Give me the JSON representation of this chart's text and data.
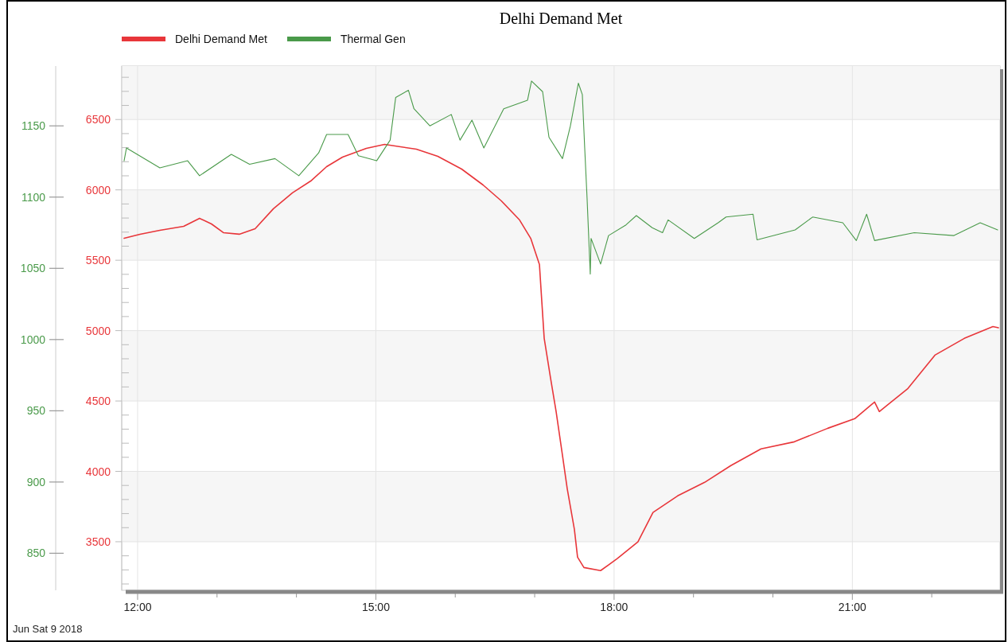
{
  "chart_data": {
    "type": "line",
    "title": "Delhi Demand Met",
    "legend": "top left",
    "grid": true,
    "annotations": [
      "Jun Sat 9 2018"
    ],
    "xlim": [
      11.8,
      22.86
    ],
    "xticks": [
      {
        "value": 12,
        "label": "12:00"
      },
      {
        "value": 13,
        "label": null
      },
      {
        "value": 14,
        "label": null
      },
      {
        "value": 15,
        "label": "15:00"
      },
      {
        "value": 16,
        "label": null
      },
      {
        "value": 17,
        "label": null
      },
      {
        "value": 18,
        "label": "18:00"
      },
      {
        "value": 19,
        "label": null
      },
      {
        "value": 20,
        "label": null
      },
      {
        "value": 21,
        "label": "21:00"
      },
      {
        "value": 22,
        "label": null
      }
    ],
    "ylim": [
      3155,
      6880
    ],
    "yticks": [
      {
        "value": 3200,
        "label": null
      },
      {
        "value": 3300,
        "label": null
      },
      {
        "value": 3400,
        "label": null
      },
      3500,
      {
        "value": 3600,
        "label": null
      },
      {
        "value": 3700,
        "label": null
      },
      {
        "value": 3800,
        "label": null
      },
      {
        "value": 3900,
        "label": null
      },
      4000,
      {
        "value": 4100,
        "label": null
      },
      {
        "value": 4200,
        "label": null
      },
      {
        "value": 4300,
        "label": null
      },
      {
        "value": 4400,
        "label": null
      },
      4500,
      {
        "value": 4600,
        "label": null
      },
      {
        "value": 4700,
        "label": null
      },
      {
        "value": 4800,
        "label": null
      },
      {
        "value": 4900,
        "label": null
      },
      5000,
      {
        "value": 5100,
        "label": null
      },
      {
        "value": 5200,
        "label": null
      },
      {
        "value": 5300,
        "label": null
      },
      {
        "value": 5400,
        "label": null
      },
      5500,
      {
        "value": 5600,
        "label": null
      },
      {
        "value": 5700,
        "label": null
      },
      {
        "value": 5800,
        "label": null
      },
      {
        "value": 5900,
        "label": null
      },
      6000,
      {
        "value": 6100,
        "label": null
      },
      {
        "value": 6200,
        "label": null
      },
      {
        "value": 6300,
        "label": null
      },
      {
        "value": 6400,
        "label": null
      },
      6500,
      {
        "value": 6600,
        "label": null
      },
      {
        "value": 6700,
        "label": null
      },
      {
        "value": 6800,
        "label": null
      }
    ],
    "y2lim": [
      824,
      1192
    ],
    "y2ticks": [
      850,
      900,
      950,
      1000,
      1050,
      1100,
      1150
    ],
    "series": [
      {
        "name": "Delhi Demand Met",
        "color": "#e8363a",
        "x": [
          11.83,
          12.03,
          12.28,
          12.58,
          12.78,
          12.93,
          13.08,
          13.28,
          13.48,
          13.71,
          13.95,
          14.18,
          14.38,
          14.58,
          14.88,
          15.11,
          15.51,
          15.78,
          16.08,
          16.35,
          16.58,
          16.81,
          16.95,
          17.06,
          17.09,
          17.12,
          17.2,
          17.27,
          17.35,
          17.41,
          17.5,
          17.54,
          17.62,
          17.83,
          18.04,
          18.3,
          18.49,
          18.8,
          19.14,
          19.47,
          19.85,
          20.27,
          20.69,
          21.03,
          21.28,
          21.34,
          21.7,
          22.04,
          22.41,
          22.77,
          22.84
        ],
        "values": [
          5656,
          5685,
          5713,
          5741,
          5798,
          5758,
          5696,
          5685,
          5724,
          5866,
          5979,
          6063,
          6165,
          6233,
          6295,
          6323,
          6289,
          6238,
          6148,
          6035,
          5922,
          5786,
          5656,
          5470,
          5205,
          4945,
          4662,
          4425,
          4114,
          3877,
          3588,
          3390,
          3317,
          3295,
          3380,
          3499,
          3708,
          3826,
          3922,
          4041,
          4160,
          4210,
          4306,
          4374,
          4493,
          4425,
          4589,
          4826,
          4945,
          5029,
          5020
        ]
      },
      {
        "name": "Thermal Gen",
        "color": "#4a9a4a",
        "axis": "y2",
        "x": [
          11.83,
          11.86,
          12.28,
          12.63,
          12.78,
          13.18,
          13.41,
          13.73,
          14.03,
          14.28,
          14.38,
          14.65,
          14.78,
          15.01,
          15.18,
          15.25,
          15.41,
          15.48,
          15.68,
          15.95,
          16.06,
          16.21,
          16.36,
          16.51,
          16.61,
          16.91,
          16.96,
          17.1,
          17.18,
          17.35,
          17.45,
          17.5,
          17.55,
          17.6,
          17.63,
          17.66,
          17.7,
          17.71,
          17.83,
          17.93,
          18.15,
          18.28,
          18.48,
          18.61,
          18.68,
          19.01,
          19.31,
          19.41,
          19.75,
          19.8,
          20.28,
          20.5,
          20.88,
          21.05,
          21.18,
          21.28,
          21.78,
          22.28,
          22.61,
          22.83
        ],
        "values": [
          1125.5,
          1134.5,
          1120.5,
          1125.5,
          1115,
          1130,
          1123,
          1127,
          1115,
          1131,
          1144,
          1144,
          1129,
          1125.5,
          1140,
          1170,
          1175,
          1162,
          1150,
          1158,
          1140,
          1154,
          1134.5,
          1151,
          1162,
          1168,
          1181.5,
          1174,
          1142,
          1127,
          1150,
          1165,
          1180,
          1172,
          1134.5,
          1099,
          1046,
          1071,
          1053,
          1073,
          1080.5,
          1087,
          1078.5,
          1075,
          1084,
          1071,
          1082,
          1086,
          1088,
          1070,
          1077,
          1086,
          1082,
          1069.5,
          1088,
          1069.5,
          1075,
          1073,
          1082,
          1077
        ]
      }
    ]
  }
}
